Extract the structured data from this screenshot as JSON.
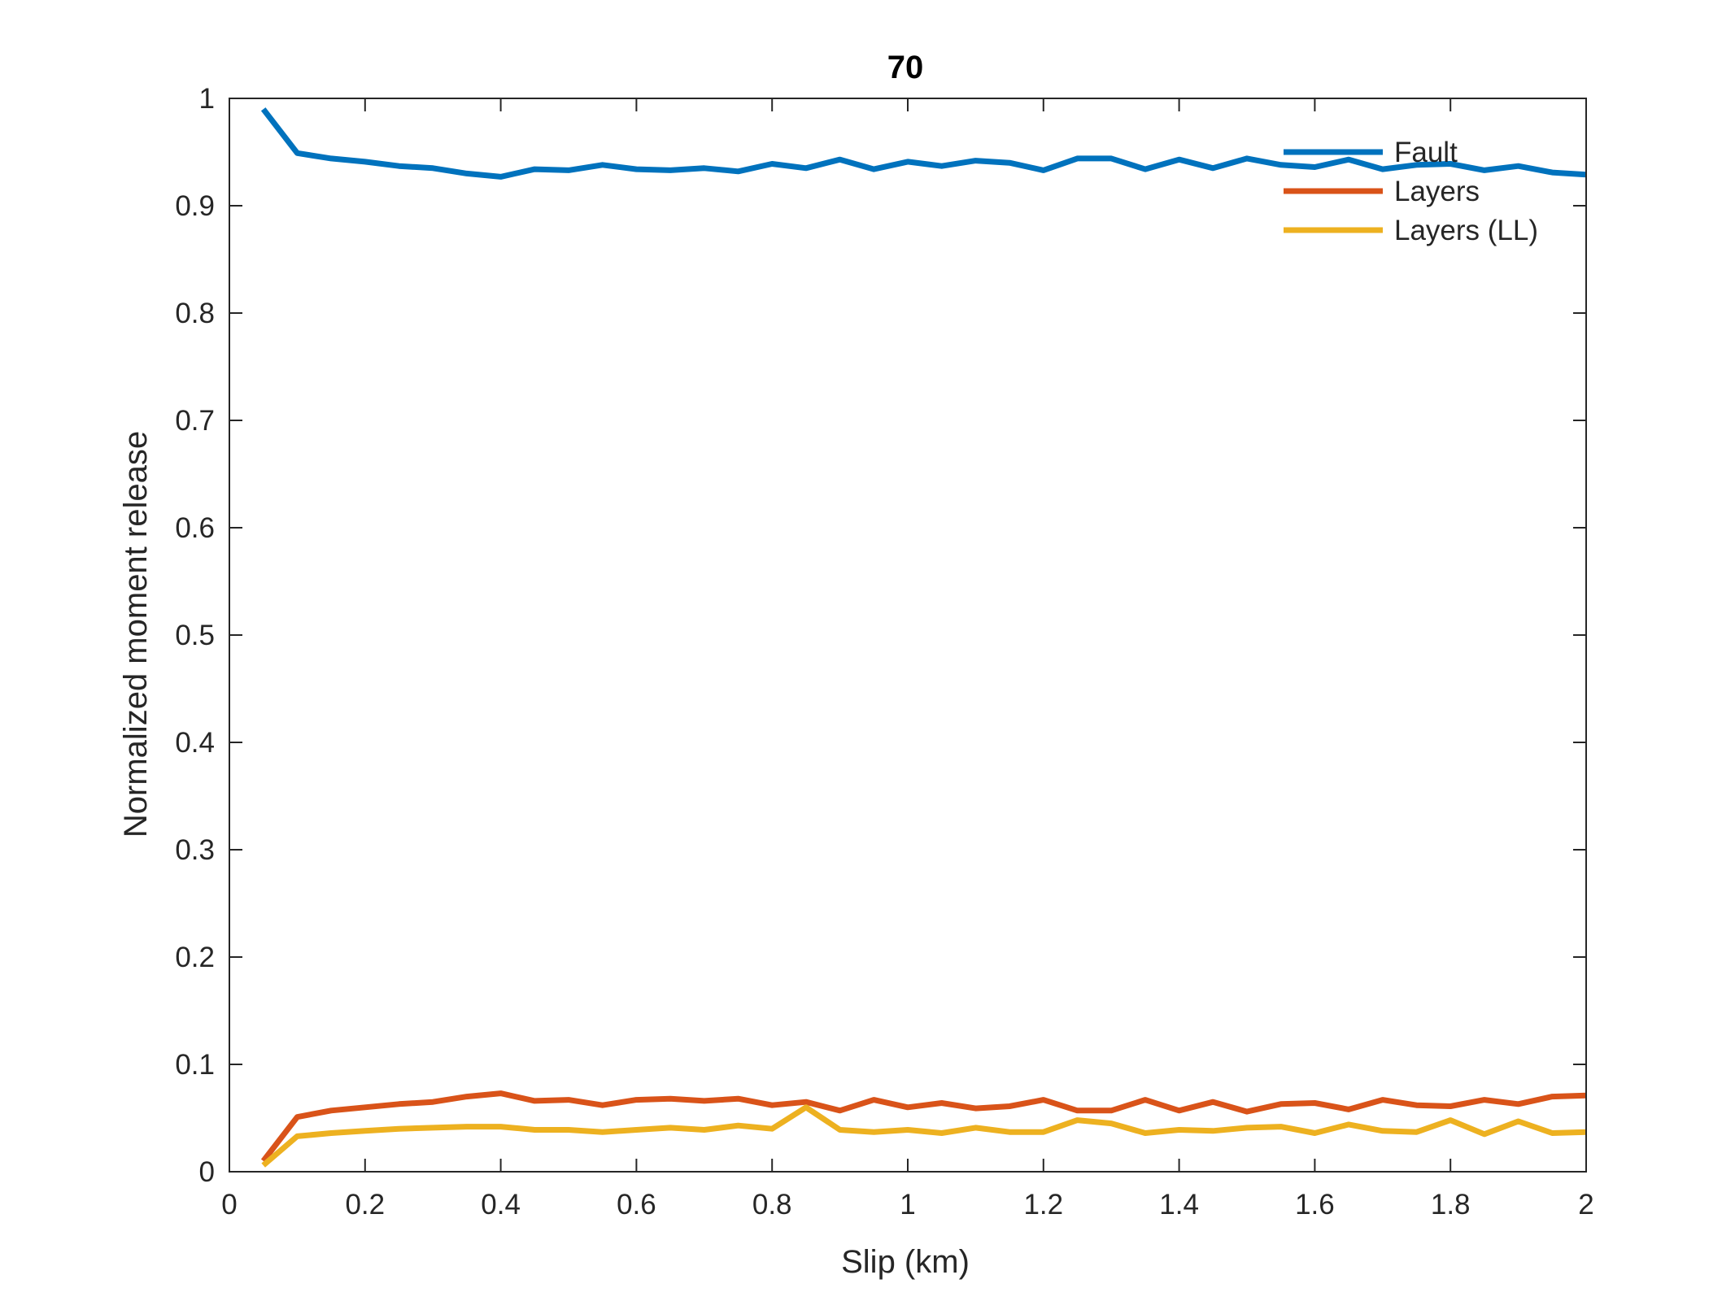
{
  "chart_data": {
    "type": "line",
    "title": "70",
    "xlabel": "Slip (km)",
    "ylabel": "Normalized moment release",
    "xlim": [
      0,
      2
    ],
    "ylim": [
      0,
      1
    ],
    "xticks": [
      0,
      0.2,
      0.4,
      0.6,
      0.8,
      1,
      1.2,
      1.4,
      1.6,
      1.8,
      2
    ],
    "xtick_labels": [
      "0",
      "0.2",
      "0.4",
      "0.6",
      "0.8",
      "1",
      "1.2",
      "1.4",
      "1.6",
      "1.8",
      "2"
    ],
    "yticks": [
      0,
      0.1,
      0.2,
      0.3,
      0.4,
      0.5,
      0.6,
      0.7,
      0.8,
      0.9,
      1
    ],
    "ytick_labels": [
      "0",
      "0.1",
      "0.2",
      "0.3",
      "0.4",
      "0.5",
      "0.6",
      "0.7",
      "0.8",
      "0.9",
      "1"
    ],
    "grid": false,
    "legend_position": "top-right",
    "x": [
      0.05,
      0.1,
      0.15,
      0.2,
      0.25,
      0.3,
      0.35,
      0.4,
      0.45,
      0.5,
      0.55,
      0.6,
      0.65,
      0.7,
      0.75,
      0.8,
      0.85,
      0.9,
      0.95,
      1.0,
      1.05,
      1.1,
      1.15,
      1.2,
      1.25,
      1.3,
      1.35,
      1.4,
      1.45,
      1.5,
      1.55,
      1.6,
      1.65,
      1.7,
      1.75,
      1.8,
      1.85,
      1.9,
      1.95,
      2.0
    ],
    "series": [
      {
        "name": "Fault",
        "color": "#0072BD",
        "values": [
          0.99,
          0.949,
          0.944,
          0.941,
          0.937,
          0.935,
          0.93,
          0.927,
          0.934,
          0.933,
          0.938,
          0.934,
          0.933,
          0.935,
          0.932,
          0.939,
          0.935,
          0.943,
          0.934,
          0.941,
          0.937,
          0.942,
          0.94,
          0.933,
          0.944,
          0.944,
          0.934,
          0.943,
          0.935,
          0.944,
          0.938,
          0.936,
          0.943,
          0.934,
          0.938,
          0.939,
          0.933,
          0.937,
          0.931,
          0.929
        ]
      },
      {
        "name": "Layers",
        "color": "#D95319",
        "values": [
          0.01,
          0.051,
          0.057,
          0.06,
          0.063,
          0.065,
          0.07,
          0.073,
          0.066,
          0.067,
          0.062,
          0.067,
          0.068,
          0.066,
          0.068,
          0.062,
          0.065,
          0.057,
          0.067,
          0.06,
          0.064,
          0.059,
          0.061,
          0.067,
          0.057,
          0.057,
          0.067,
          0.057,
          0.065,
          0.056,
          0.063,
          0.064,
          0.058,
          0.067,
          0.062,
          0.061,
          0.067,
          0.063,
          0.07,
          0.071
        ]
      },
      {
        "name": "Layers (LL)",
        "color": "#EDB120",
        "values": [
          0.006,
          0.033,
          0.036,
          0.038,
          0.04,
          0.041,
          0.042,
          0.042,
          0.039,
          0.039,
          0.037,
          0.039,
          0.041,
          0.039,
          0.043,
          0.04,
          0.06,
          0.039,
          0.037,
          0.039,
          0.036,
          0.041,
          0.037,
          0.037,
          0.048,
          0.045,
          0.036,
          0.039,
          0.038,
          0.041,
          0.042,
          0.036,
          0.044,
          0.038,
          0.037,
          0.048,
          0.035,
          0.047,
          0.036,
          0.037
        ]
      }
    ]
  }
}
